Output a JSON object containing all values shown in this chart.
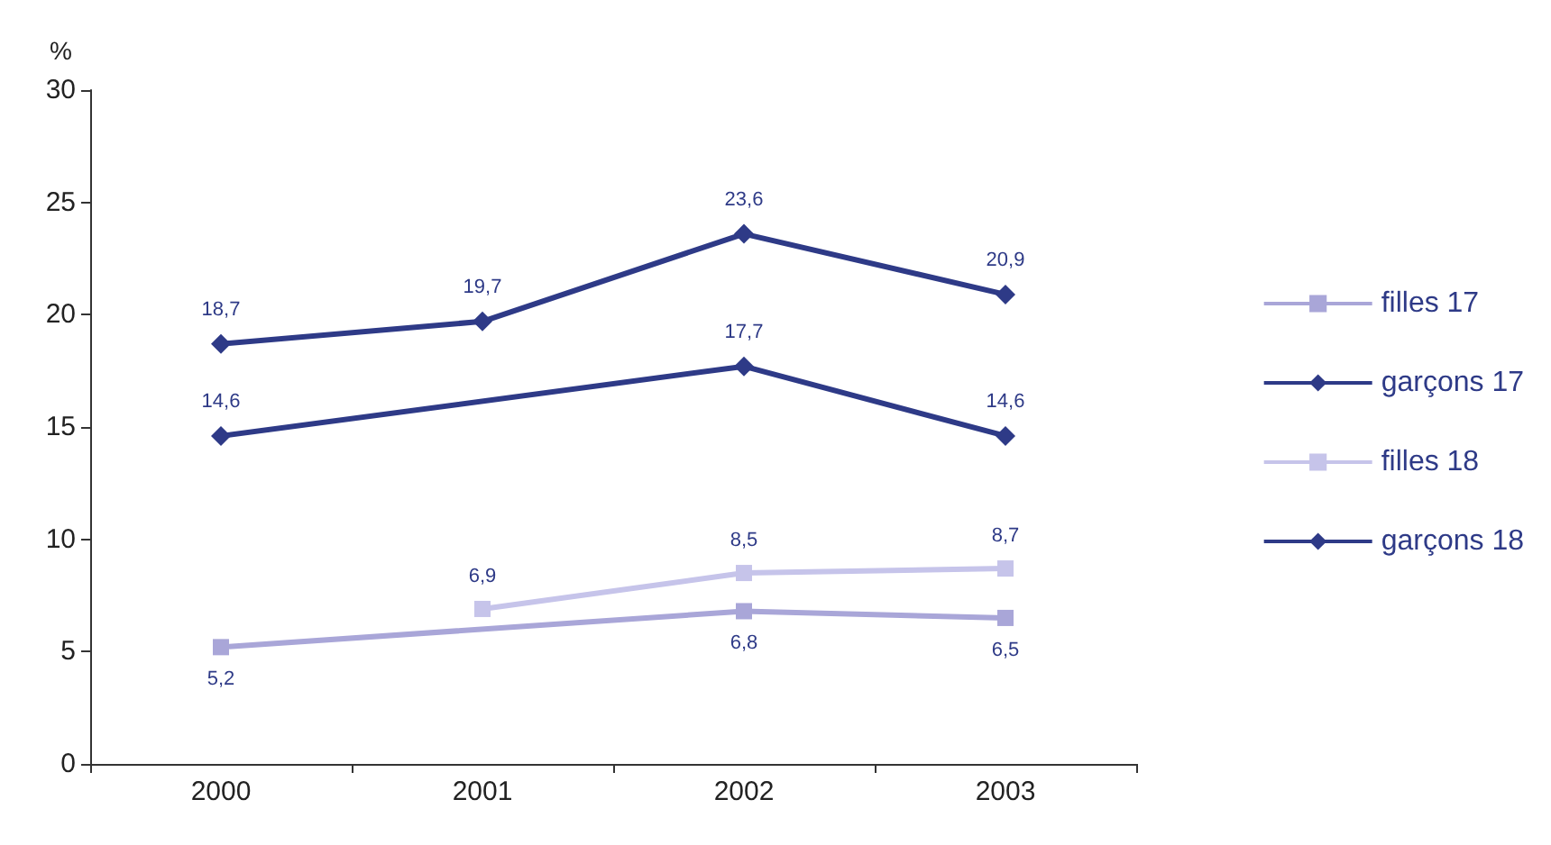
{
  "chart_data": {
    "type": "line",
    "ylabel": "%",
    "categories": [
      "2000",
      "2001",
      "2002",
      "2003"
    ],
    "series": [
      {
        "name": "filles 17",
        "color": "#a9a6d8",
        "marker": "square",
        "values": [
          5.2,
          null,
          6.8,
          6.5
        ],
        "value_labels": [
          "5,2",
          null,
          "6,8",
          "6,5"
        ]
      },
      {
        "name": "garçons 17",
        "color": "#2e3a87",
        "marker": "diamond",
        "values": [
          14.6,
          null,
          17.7,
          14.6
        ],
        "value_labels": [
          "14,6",
          null,
          "17,7",
          "14,6"
        ]
      },
      {
        "name": "filles 18",
        "color": "#c6c4ea",
        "marker": "square",
        "values": [
          null,
          6.9,
          8.5,
          8.7
        ],
        "value_labels": [
          null,
          "6,9",
          "8,5",
          "8,7"
        ]
      },
      {
        "name": "garçons 18",
        "color": "#2e3a87",
        "marker": "diamond",
        "values": [
          18.7,
          19.7,
          23.6,
          20.9
        ],
        "value_labels": [
          "18,7",
          "19,7",
          "23,6",
          "20,9"
        ]
      }
    ],
    "ylim": [
      0,
      30
    ],
    "yticks": [
      0,
      5,
      10,
      15,
      20,
      25,
      30
    ],
    "grid": false,
    "legend": "right"
  }
}
